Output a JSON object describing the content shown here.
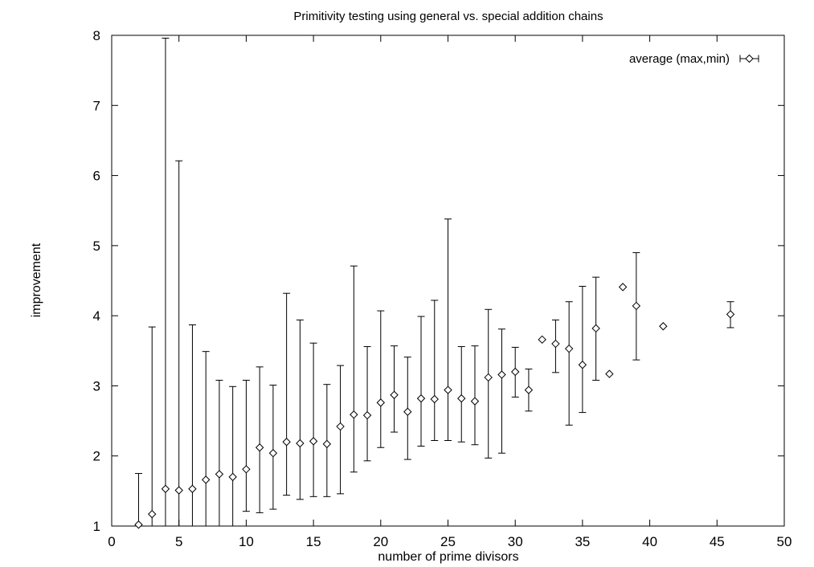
{
  "chart_data": {
    "type": "scatter",
    "title": "Primitivity testing using general vs. special addition chains",
    "xlabel": "number of prime divisors",
    "ylabel": "improvement",
    "xlim": [
      0,
      50
    ],
    "ylim": [
      1,
      8
    ],
    "xticks": [
      0,
      5,
      10,
      15,
      20,
      25,
      30,
      35,
      40,
      45,
      50
    ],
    "yticks": [
      1,
      2,
      3,
      4,
      5,
      6,
      7,
      8
    ],
    "grid": false,
    "legend_position": "top-right",
    "series": [
      {
        "name": "average (max,min)",
        "marker": "diamond",
        "error_bars": true,
        "color": "#000000",
        "points": [
          {
            "x": 2,
            "y": 1.02,
            "ymin": 1.0,
            "ymax": 1.75
          },
          {
            "x": 3,
            "y": 1.17,
            "ymin": 1.0,
            "ymax": 3.84
          },
          {
            "x": 4,
            "y": 1.53,
            "ymin": 1.0,
            "ymax": 7.96
          },
          {
            "x": 5,
            "y": 1.51,
            "ymin": 1.0,
            "ymax": 6.21
          },
          {
            "x": 6,
            "y": 1.53,
            "ymin": 1.0,
            "ymax": 3.87
          },
          {
            "x": 7,
            "y": 1.66,
            "ymin": 1.0,
            "ymax": 3.49
          },
          {
            "x": 8,
            "y": 1.74,
            "ymin": 1.0,
            "ymax": 3.08
          },
          {
            "x": 9,
            "y": 1.7,
            "ymin": 1.0,
            "ymax": 2.99
          },
          {
            "x": 10,
            "y": 1.81,
            "ymin": 1.21,
            "ymax": 3.08
          },
          {
            "x": 11,
            "y": 2.12,
            "ymin": 1.19,
            "ymax": 3.27
          },
          {
            "x": 12,
            "y": 2.04,
            "ymin": 1.24,
            "ymax": 3.01
          },
          {
            "x": 13,
            "y": 2.2,
            "ymin": 1.44,
            "ymax": 4.32
          },
          {
            "x": 14,
            "y": 2.18,
            "ymin": 1.38,
            "ymax": 3.94
          },
          {
            "x": 15,
            "y": 2.21,
            "ymin": 1.42,
            "ymax": 3.61
          },
          {
            "x": 16,
            "y": 2.17,
            "ymin": 1.42,
            "ymax": 3.02
          },
          {
            "x": 17,
            "y": 2.42,
            "ymin": 1.46,
            "ymax": 3.29
          },
          {
            "x": 18,
            "y": 2.59,
            "ymin": 1.77,
            "ymax": 4.71
          },
          {
            "x": 19,
            "y": 2.58,
            "ymin": 1.93,
            "ymax": 3.56
          },
          {
            "x": 20,
            "y": 2.76,
            "ymin": 2.12,
            "ymax": 4.07
          },
          {
            "x": 21,
            "y": 2.87,
            "ymin": 2.34,
            "ymax": 3.57
          },
          {
            "x": 22,
            "y": 2.63,
            "ymin": 1.95,
            "ymax": 3.41
          },
          {
            "x": 23,
            "y": 2.82,
            "ymin": 2.14,
            "ymax": 3.99
          },
          {
            "x": 24,
            "y": 2.81,
            "ymin": 2.22,
            "ymax": 4.22
          },
          {
            "x": 25,
            "y": 2.94,
            "ymin": 2.22,
            "ymax": 5.38
          },
          {
            "x": 26,
            "y": 2.82,
            "ymin": 2.2,
            "ymax": 3.56
          },
          {
            "x": 27,
            "y": 2.78,
            "ymin": 2.16,
            "ymax": 3.57
          },
          {
            "x": 28,
            "y": 3.12,
            "ymin": 1.97,
            "ymax": 4.09
          },
          {
            "x": 29,
            "y": 3.16,
            "ymin": 2.04,
            "ymax": 3.81
          },
          {
            "x": 30,
            "y": 3.2,
            "ymin": 2.84,
            "ymax": 3.55
          },
          {
            "x": 31,
            "y": 2.94,
            "ymin": 2.64,
            "ymax": 3.24
          },
          {
            "x": 32,
            "y": 3.66,
            "ymin": 3.66,
            "ymax": 3.66
          },
          {
            "x": 33,
            "y": 3.6,
            "ymin": 3.19,
            "ymax": 3.94
          },
          {
            "x": 34,
            "y": 3.53,
            "ymin": 2.44,
            "ymax": 4.2
          },
          {
            "x": 35,
            "y": 3.3,
            "ymin": 2.62,
            "ymax": 4.42
          },
          {
            "x": 36,
            "y": 3.82,
            "ymin": 3.08,
            "ymax": 4.55
          },
          {
            "x": 37,
            "y": 3.17,
            "ymin": 3.17,
            "ymax": 3.17
          },
          {
            "x": 38,
            "y": 4.41,
            "ymin": 4.41,
            "ymax": 4.41
          },
          {
            "x": 39,
            "y": 4.14,
            "ymin": 3.37,
            "ymax": 4.9
          },
          {
            "x": 41,
            "y": 3.85,
            "ymin": 3.85,
            "ymax": 3.85
          },
          {
            "x": 46,
            "y": 4.02,
            "ymin": 3.83,
            "ymax": 4.2
          }
        ]
      }
    ]
  }
}
